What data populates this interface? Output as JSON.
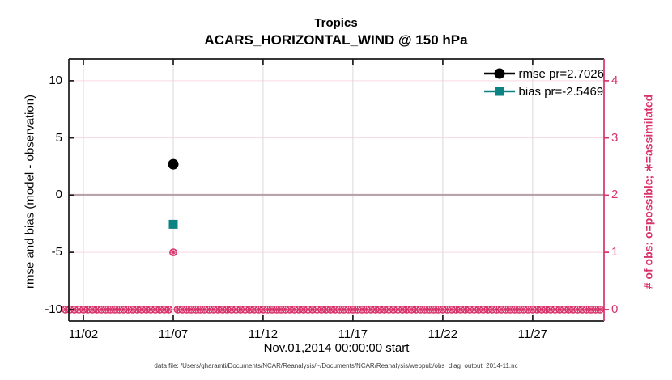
{
  "title": {
    "line1": "Tropics",
    "line2": "ACARS_HORIZONTAL_WIND @ 150 hPa"
  },
  "footer": "data file: /Users/gharamti/Documents/NCAR/Reanalysis/~/Documents/NCAR/Reanalysis/webpub/obs_diag_output_2014-11.nc",
  "chart_data": {
    "type": "scatter",
    "xlabel": "Nov.01,2014 00:00:00 start",
    "ylabel_left": "rmse and bias (model - observation)",
    "ylabel_right": "# of obs: o=possible; ∗=assimilated",
    "xlim_days": [
      1.19,
      30.97
    ],
    "ylim_left": [
      -11.0,
      11.9
    ],
    "x_ticks": [
      {
        "label": "11/02",
        "day": 2
      },
      {
        "label": "11/07",
        "day": 7
      },
      {
        "label": "11/12",
        "day": 12
      },
      {
        "label": "11/17",
        "day": 17
      },
      {
        "label": "11/22",
        "day": 22
      },
      {
        "label": "11/27",
        "day": 27
      }
    ],
    "left_ticks": [
      {
        "label": "10",
        "value": 10
      },
      {
        "label": "5",
        "value": 5
      },
      {
        "label": "0",
        "value": 0
      },
      {
        "label": "-5",
        "value": -5
      },
      {
        "label": "-10",
        "value": -10
      }
    ],
    "right_ticks": [
      {
        "label": "4",
        "value": 4
      },
      {
        "label": "3",
        "value": 3
      },
      {
        "label": "2",
        "value": 2
      },
      {
        "label": "1",
        "value": 1
      },
      {
        "label": "0",
        "value": 0
      }
    ],
    "legend": [
      {
        "label": "rmse pr=2.7026",
        "marker": "circle",
        "color": "#000000"
      },
      {
        "label": "bias pr=-2.5469",
        "marker": "square",
        "color": "#0e8383"
      }
    ],
    "series": [
      {
        "name": "rmse",
        "marker": "circle",
        "color": "#000000",
        "points": [
          {
            "day": 7,
            "value": 2.7026
          }
        ]
      },
      {
        "name": "bias",
        "marker": "square",
        "color": "#0e8383",
        "points": [
          {
            "day": 7,
            "value": -2.5469
          }
        ]
      }
    ],
    "obs_series": {
      "description": "o=possible and *=assimilated counts per 6-hour bin, plotted on right axis",
      "start_day": 1.0,
      "end_day": 30.75,
      "step_days": 0.25,
      "default_count": 0,
      "nonzero": [
        {
          "day": 7,
          "count": 1
        }
      ]
    },
    "zero_line_value": 0,
    "grid": true,
    "colors": {
      "obs_magenta": "#d8326b",
      "bias_teal": "#0e8383",
      "rmse_black": "#000000",
      "zero_line": "#b9a2ac",
      "grid_vertical": "#d9d9d9",
      "grid_horizontal_pink": "#f6d9e2",
      "axis_box": "#1a1a1a"
    }
  }
}
